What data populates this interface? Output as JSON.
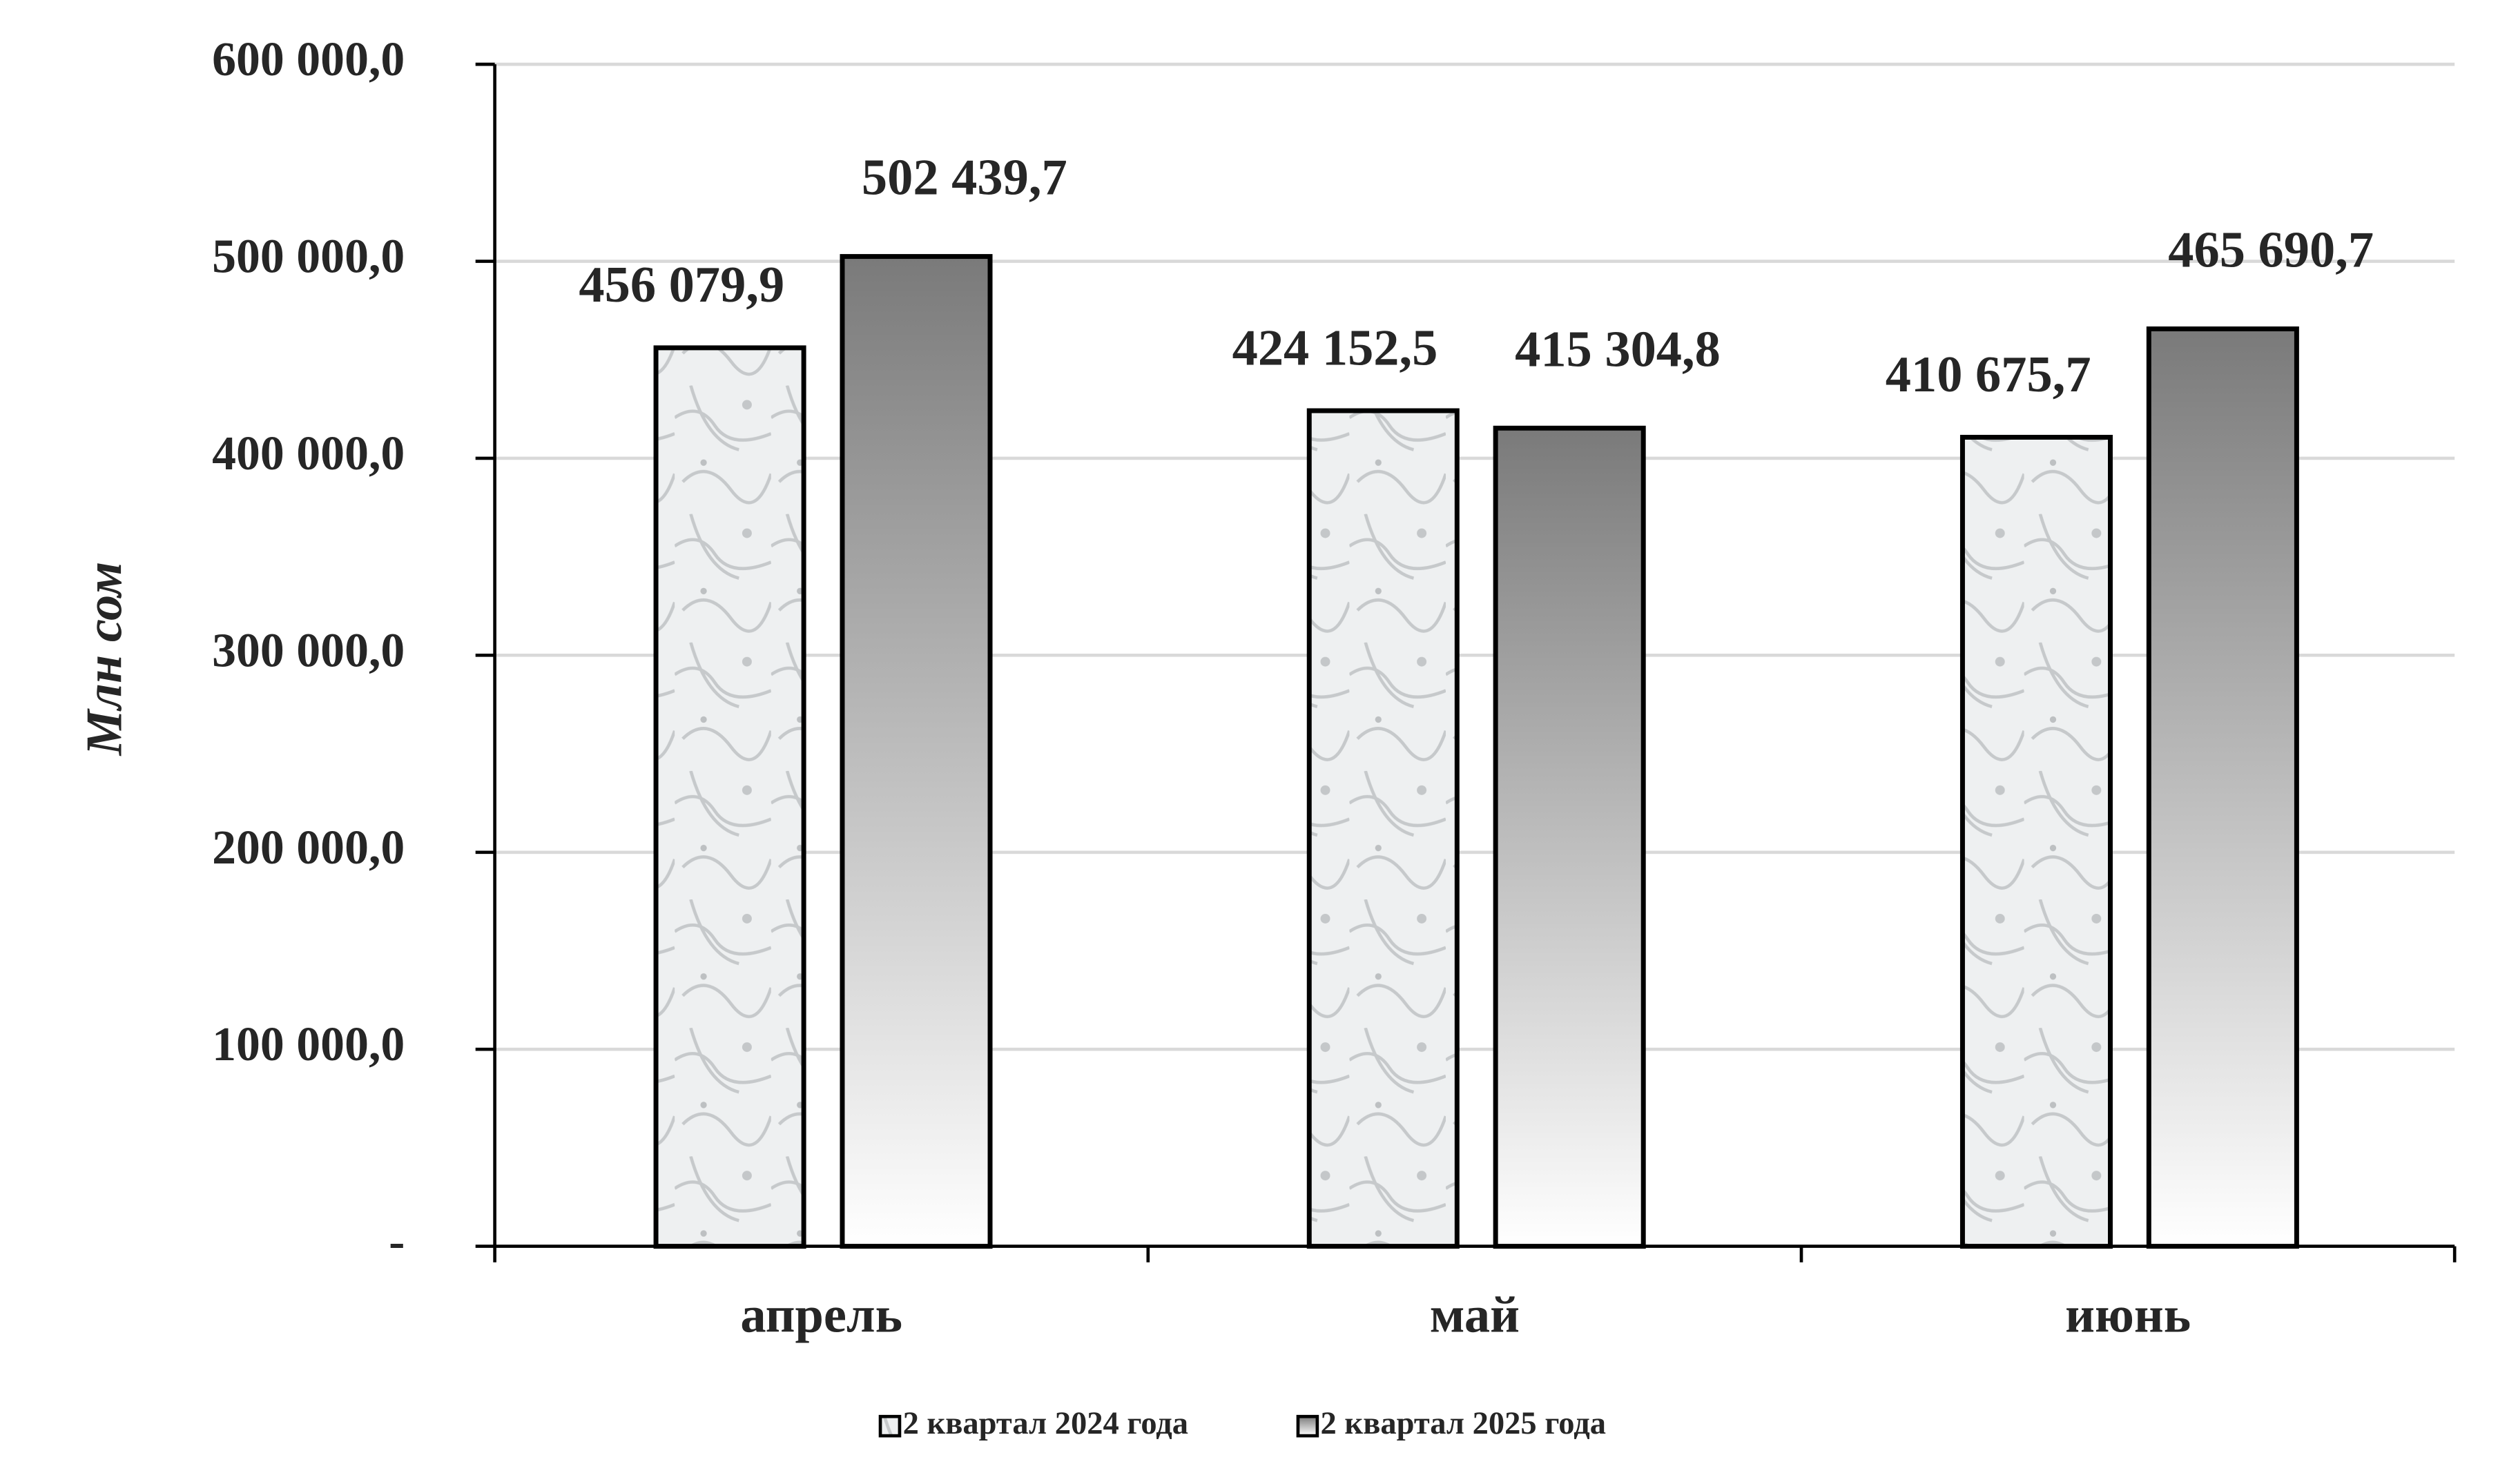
{
  "chart_data": {
    "type": "bar",
    "y_label": "Млн сом",
    "categories": [
      "апрель",
      "май",
      "июнь"
    ],
    "series": [
      {
        "name": "2 квартал 2024 года",
        "color": "#e4e6e8",
        "values": [
          456079.9,
          424152.5,
          410675.7
        ],
        "value_labels": [
          "456 079,9",
          "424 152,5",
          "410 675,7"
        ]
      },
      {
        "name": "2 квартал 2025 года",
        "color": "#7a7a7a",
        "values": [
          502439.7,
          415304.8,
          465690.7
        ],
        "value_labels": [
          "502 439,7",
          "415 304,8",
          "465 690,7"
        ]
      }
    ],
    "ylim": [
      0,
      600000
    ],
    "yticks": [
      {
        "value": 0,
        "label": "-"
      },
      {
        "value": 100000,
        "label": "100 000,0"
      },
      {
        "value": 200000,
        "label": "200 000,0"
      },
      {
        "value": 300000,
        "label": "300 000,0"
      },
      {
        "value": 400000,
        "label": "400 000,0"
      },
      {
        "value": 500000,
        "label": "500 000,0"
      },
      {
        "value": 600000,
        "label": "600 000,0"
      }
    ],
    "grid": true,
    "legend": "bottom"
  }
}
